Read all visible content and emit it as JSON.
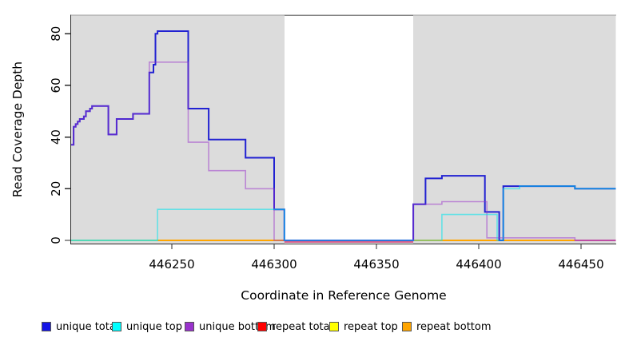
{
  "chart_data": {
    "type": "line",
    "subtype": "step",
    "title": "",
    "xlabel": "Coordinate in Reference Genome",
    "ylabel": "Read Coverage Depth",
    "xlim": [
      446200,
      446467
    ],
    "ylim": [
      0,
      85
    ],
    "x_ticks": [
      446250,
      446300,
      446350,
      446400,
      446450
    ],
    "y_ticks": [
      0,
      20,
      40,
      60,
      80
    ],
    "grid": false,
    "legend_position": "bottom",
    "panel_color": "#DCDCDC",
    "gap_color": "#FFFFFF",
    "background_regions": [
      {
        "name": "shaded-left",
        "from": 446200,
        "to": 446305,
        "color": "#DCDCDC"
      },
      {
        "name": "no-data-gap",
        "from": 446305,
        "to": 446368,
        "color": "#FFFFFF"
      },
      {
        "name": "shaded-right",
        "from": 446368,
        "to": 446467,
        "color": "#DCDCDC"
      }
    ],
    "series": [
      {
        "name": "unique total",
        "color": "#2222D2",
        "steps": [
          [
            446200.5,
            37
          ],
          [
            446202,
            44
          ],
          [
            446203,
            45
          ],
          [
            446204,
            46
          ],
          [
            446205,
            47
          ],
          [
            446207,
            48
          ],
          [
            446208,
            50
          ],
          [
            446210,
            51
          ],
          [
            446211,
            52
          ],
          [
            446219,
            41
          ],
          [
            446223,
            47
          ],
          [
            446231,
            49
          ],
          [
            446239,
            65
          ],
          [
            446241,
            68
          ],
          [
            446242,
            80
          ],
          [
            446243,
            81
          ],
          [
            446258,
            51
          ],
          [
            446268,
            39
          ],
          [
            446286,
            32
          ],
          [
            446300,
            12
          ],
          [
            446305,
            0
          ],
          [
            446368,
            14
          ],
          [
            446374,
            24
          ],
          [
            446382,
            25
          ],
          [
            446403,
            11
          ],
          [
            446410,
            0
          ],
          [
            446412,
            21
          ],
          [
            446447,
            20
          ],
          [
            446467,
            20
          ]
        ]
      },
      {
        "name": "unique top",
        "color": "#00E5EE",
        "steps": [
          [
            446200.5,
            0
          ],
          [
            446243,
            12
          ],
          [
            446305,
            0
          ],
          [
            446382,
            10
          ],
          [
            446409,
            0
          ],
          [
            446412,
            20
          ],
          [
            446420,
            21
          ],
          [
            446447,
            20
          ],
          [
            446467,
            20
          ]
        ]
      },
      {
        "name": "unique bottom",
        "color": "#9932CC",
        "steps": [
          [
            446200.5,
            37
          ],
          [
            446202,
            44
          ],
          [
            446203,
            45
          ],
          [
            446204,
            46
          ],
          [
            446205,
            47
          ],
          [
            446207,
            48
          ],
          [
            446208,
            50
          ],
          [
            446210,
            51
          ],
          [
            446211,
            52
          ],
          [
            446219,
            41
          ],
          [
            446223,
            47
          ],
          [
            446231,
            49
          ],
          [
            446239,
            69
          ],
          [
            446258,
            38
          ],
          [
            446268,
            27
          ],
          [
            446286,
            20
          ],
          [
            446300,
            0
          ],
          [
            446368,
            14
          ],
          [
            446382,
            15
          ],
          [
            446404,
            1
          ],
          [
            446447,
            0
          ]
        ]
      },
      {
        "name": "repeat total",
        "color": "#FF0000",
        "steps": [
          [
            446200.5,
            0
          ],
          [
            446467,
            0
          ]
        ]
      },
      {
        "name": "repeat top",
        "color": "#FFFF00",
        "steps": [
          [
            446200.5,
            0
          ],
          [
            446467,
            0
          ]
        ]
      },
      {
        "name": "repeat bottom",
        "color": "#FFA500",
        "steps": [
          [
            446200.5,
            0
          ],
          [
            446447,
            0
          ]
        ]
      }
    ],
    "baseline_segments": [
      {
        "name": "baseline-green",
        "color": "#8FCE8F",
        "from": 446200.5,
        "to": 446243,
        "dy": 0
      },
      {
        "name": "baseline-pink-gap",
        "color": "#D4608C",
        "from": 446305,
        "to": 446368,
        "dy": 2
      },
      {
        "name": "baseline-pink-right",
        "color": "#D4608C",
        "from": 446447,
        "to": 446467,
        "dy": 0
      }
    ]
  },
  "legend": {
    "items": [
      {
        "label": "unique total",
        "color": "#1414E6"
      },
      {
        "label": "unique top",
        "color": "#00FFFF"
      },
      {
        "label": "unique bottom",
        "color": "#9932CC"
      },
      {
        "label": "repeat total",
        "color": "#FF0000"
      },
      {
        "label": "repeat top",
        "color": "#FFFF00"
      },
      {
        "label": "repeat bottom",
        "color": "#FFA500"
      }
    ]
  }
}
